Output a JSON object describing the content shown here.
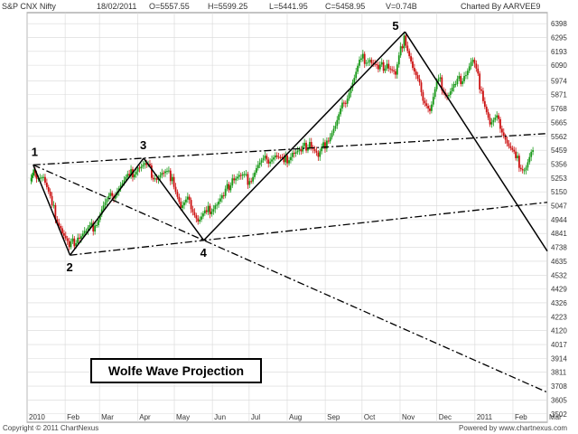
{
  "header": {
    "symbol": "S&P CNX Nifty",
    "date": "18/02/2011",
    "open": "O=5557.55",
    "high": "H=5599.25",
    "low": "L=5441.95",
    "close": "C=5458.95",
    "volume": "V=0.74B",
    "charted_by": "Charted By AARVEE9"
  },
  "footer": {
    "copyright": "Copyright © 2011 ChartNexus",
    "powered": "Powered by www.chartnexus.com"
  },
  "colors": {
    "up": "#1a9a1a",
    "down": "#cc1111",
    "grid": "#d8d8d8",
    "line": "#000000"
  },
  "chart_data": {
    "type": "candlestick",
    "title": "Wolfe Wave Projection",
    "x_ticks": [
      "2010",
      "Feb",
      "Mar",
      "Apr",
      "May",
      "Jun",
      "Jul",
      "Aug",
      "Sep",
      "Oct",
      "Nov",
      "Dec",
      "2011",
      "Feb",
      "Mar"
    ],
    "y_ticks": [
      6398,
      6295,
      6193,
      6090,
      5974,
      5871,
      5768,
      5665,
      5562,
      5459,
      5356,
      5253,
      5150,
      5047,
      4944,
      4841,
      4738,
      4635,
      4532,
      4429,
      4326,
      4223,
      4120,
      4017,
      3914,
      3811,
      3708,
      3605,
      3502
    ],
    "ylim": [
      3440,
      6480
    ],
    "wave_points": [
      {
        "label": "1",
        "date": "2010-01-06",
        "value": 5350
      },
      {
        "label": "2",
        "date": "2010-02-05",
        "value": 4680
      },
      {
        "label": "3",
        "date": "2010-04-06",
        "value": 5400
      },
      {
        "label": "4",
        "date": "2010-05-25",
        "value": 4790
      },
      {
        "label": "5",
        "date": "2010-11-05",
        "value": 6338
      }
    ],
    "close_series": [
      {
        "date": "2010-01-04",
        "close": 5230
      },
      {
        "date": "2010-01-08",
        "close": 5290
      },
      {
        "date": "2010-01-15",
        "close": 5260
      },
      {
        "date": "2010-01-22",
        "close": 5050
      },
      {
        "date": "2010-01-29",
        "close": 4880
      },
      {
        "date": "2010-02-05",
        "close": 4740
      },
      {
        "date": "2010-02-12",
        "close": 4810
      },
      {
        "date": "2010-02-19",
        "close": 4860
      },
      {
        "date": "2010-02-26",
        "close": 4900
      },
      {
        "date": "2010-03-05",
        "close": 5050
      },
      {
        "date": "2010-03-12",
        "close": 5120
      },
      {
        "date": "2010-03-19",
        "close": 5200
      },
      {
        "date": "2010-03-26",
        "close": 5270
      },
      {
        "date": "2010-04-02",
        "close": 5330
      },
      {
        "date": "2010-04-09",
        "close": 5350
      },
      {
        "date": "2010-04-16",
        "close": 5250
      },
      {
        "date": "2010-04-23",
        "close": 5290
      },
      {
        "date": "2010-04-30",
        "close": 5260
      },
      {
        "date": "2010-05-07",
        "close": 5030
      },
      {
        "date": "2010-05-14",
        "close": 5090
      },
      {
        "date": "2010-05-21",
        "close": 4930
      },
      {
        "date": "2010-05-28",
        "close": 5000
      },
      {
        "date": "2010-06-04",
        "close": 5050
      },
      {
        "date": "2010-06-11",
        "close": 5120
      },
      {
        "date": "2010-06-18",
        "close": 5250
      },
      {
        "date": "2010-06-25",
        "close": 5270
      },
      {
        "date": "2010-07-02",
        "close": 5230
      },
      {
        "date": "2010-07-09",
        "close": 5350
      },
      {
        "date": "2010-07-16",
        "close": 5390
      },
      {
        "date": "2010-07-23",
        "close": 5420
      },
      {
        "date": "2010-07-30",
        "close": 5370
      },
      {
        "date": "2010-08-06",
        "close": 5440
      },
      {
        "date": "2010-08-13",
        "close": 5450
      },
      {
        "date": "2010-08-20",
        "close": 5520
      },
      {
        "date": "2010-08-27",
        "close": 5410
      },
      {
        "date": "2010-09-03",
        "close": 5530
      },
      {
        "date": "2010-09-10",
        "close": 5640
      },
      {
        "date": "2010-09-17",
        "close": 5810
      },
      {
        "date": "2010-09-24",
        "close": 5960
      },
      {
        "date": "2010-10-01",
        "close": 6140
      },
      {
        "date": "2010-10-08",
        "close": 6130
      },
      {
        "date": "2010-10-15",
        "close": 6060
      },
      {
        "date": "2010-10-22",
        "close": 6100
      },
      {
        "date": "2010-10-29",
        "close": 6020
      },
      {
        "date": "2010-11-05",
        "close": 6310
      },
      {
        "date": "2010-11-12",
        "close": 6070
      },
      {
        "date": "2010-11-19",
        "close": 5890
      },
      {
        "date": "2010-11-26",
        "close": 5750
      },
      {
        "date": "2010-12-03",
        "close": 5990
      },
      {
        "date": "2010-12-10",
        "close": 5860
      },
      {
        "date": "2010-12-17",
        "close": 5950
      },
      {
        "date": "2010-12-24",
        "close": 6010
      },
      {
        "date": "2010-12-31",
        "close": 6130
      },
      {
        "date": "2011-01-07",
        "close": 5900
      },
      {
        "date": "2011-01-14",
        "close": 5650
      },
      {
        "date": "2011-01-21",
        "close": 5690
      },
      {
        "date": "2011-01-28",
        "close": 5510
      },
      {
        "date": "2011-02-04",
        "close": 5400
      },
      {
        "date": "2011-02-11",
        "close": 5310
      },
      {
        "date": "2011-02-18",
        "close": 5459
      }
    ]
  }
}
